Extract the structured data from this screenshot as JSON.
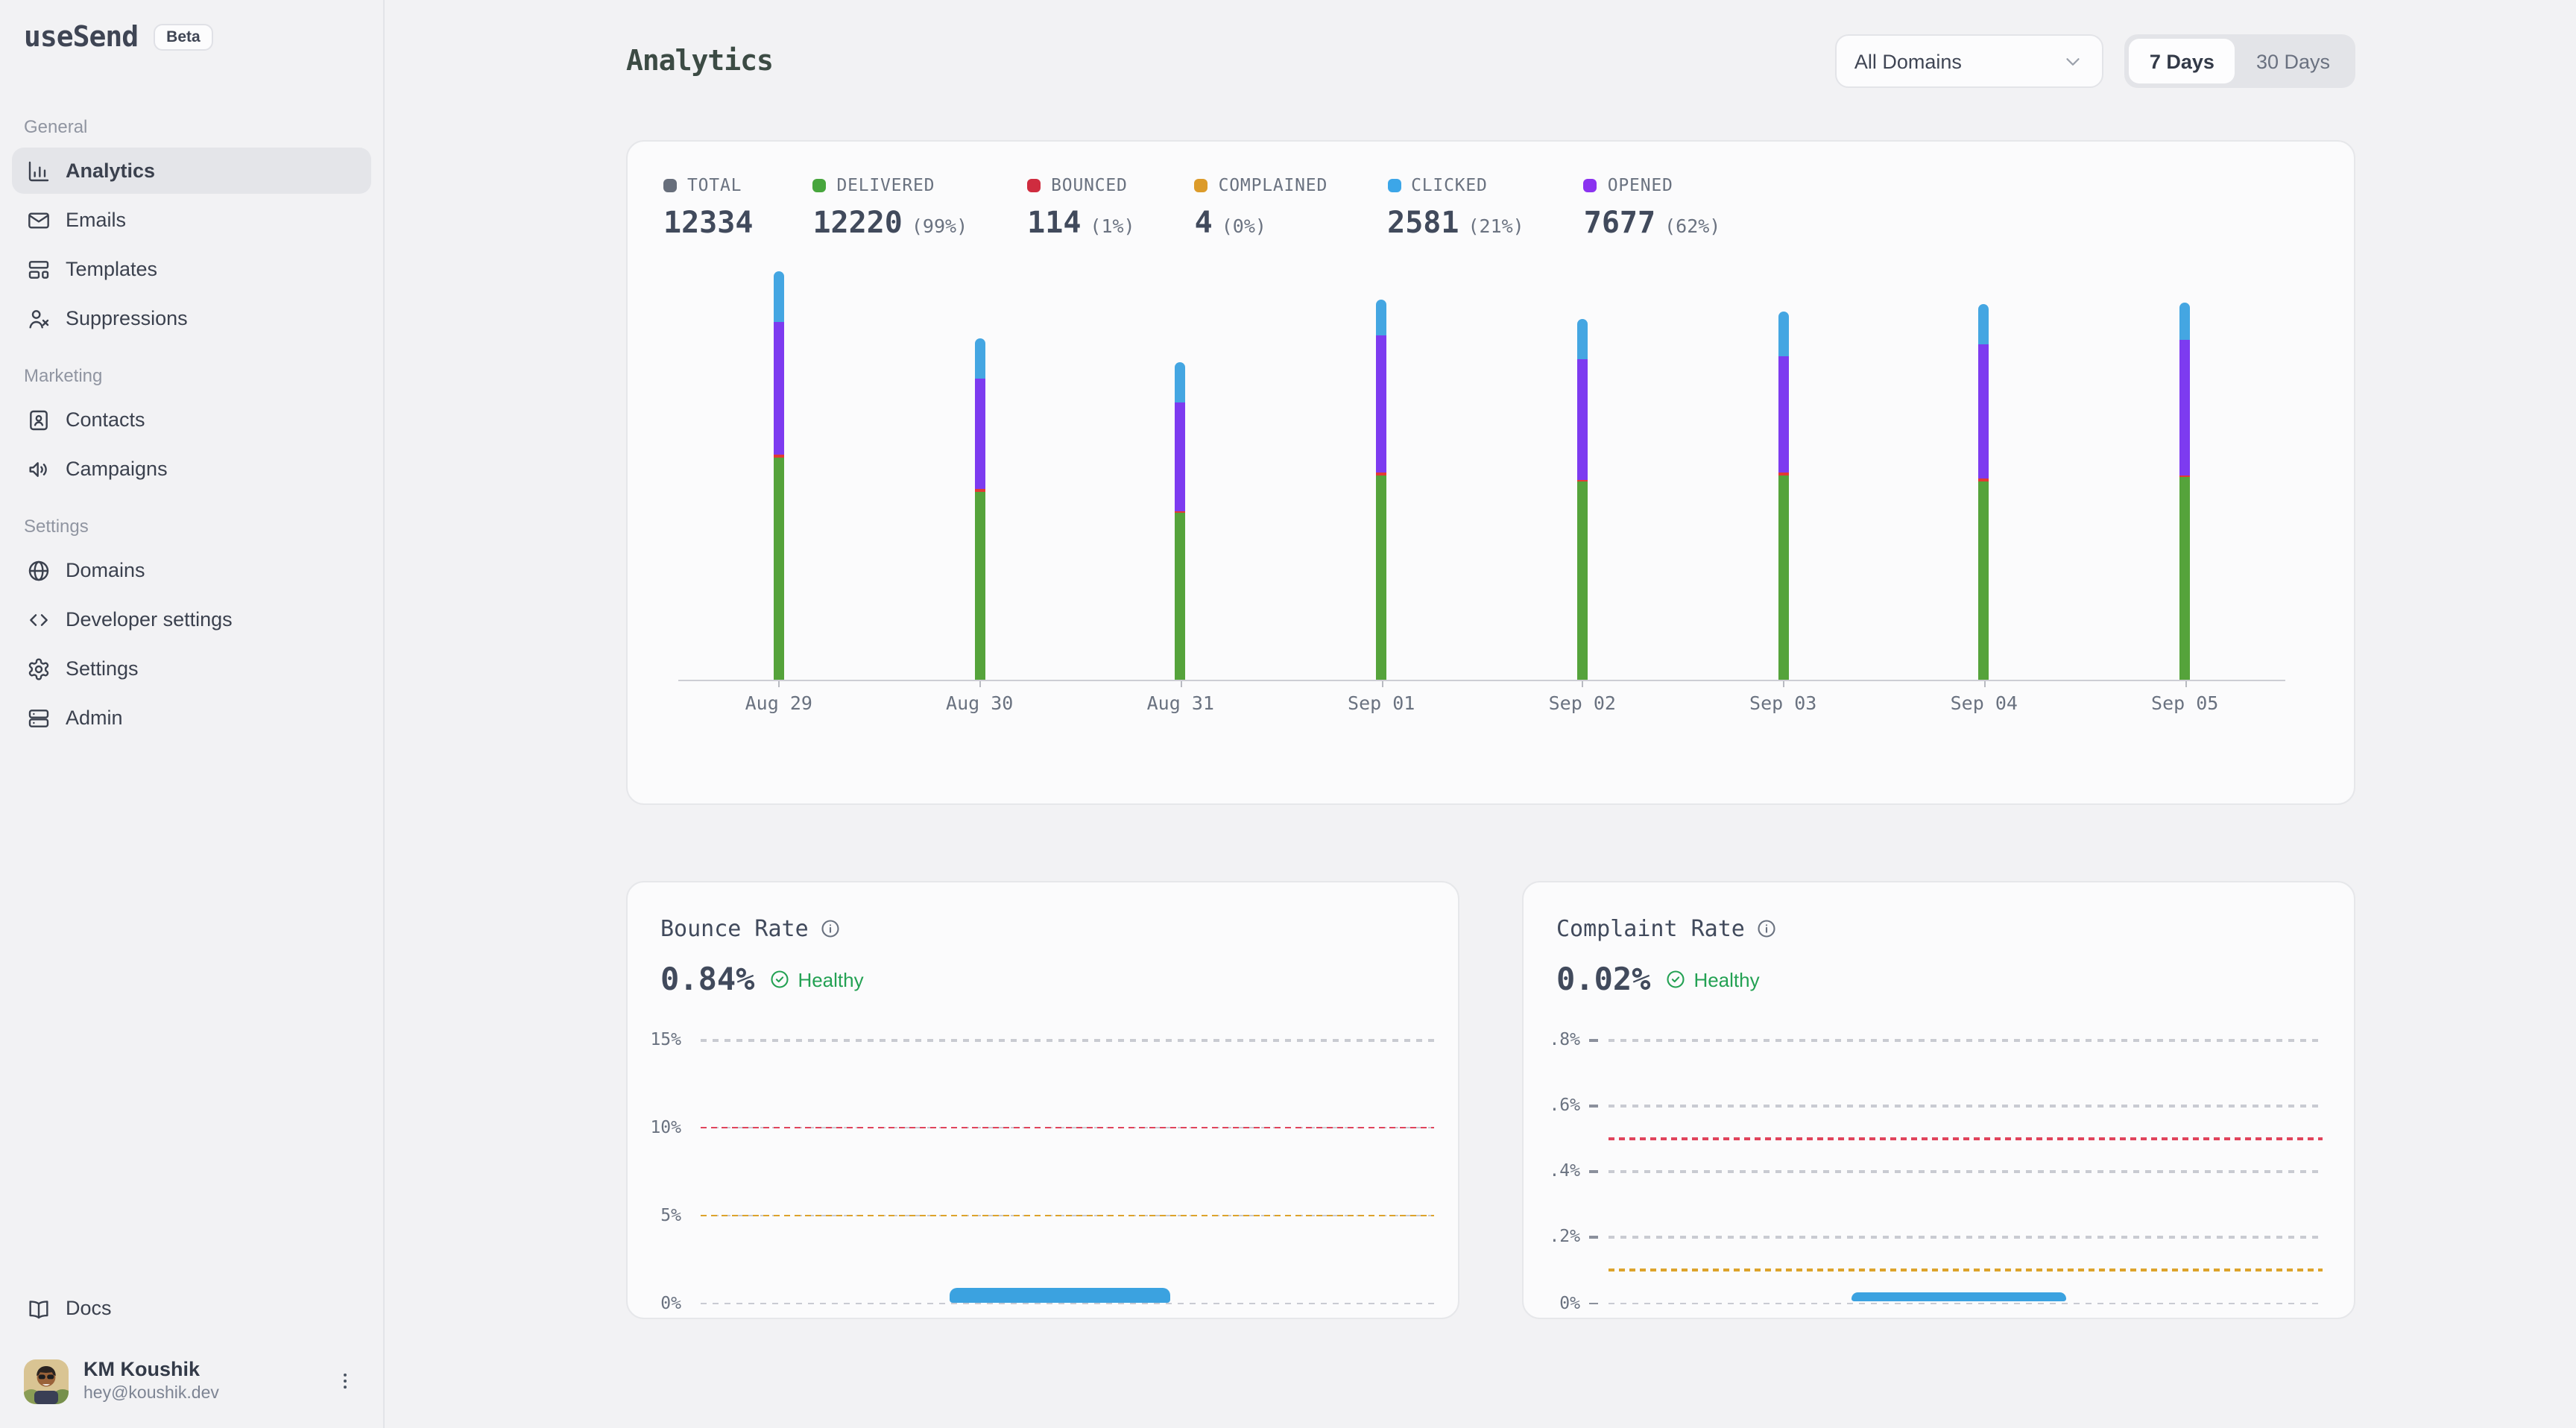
{
  "sidebar": {
    "logo": "useSend",
    "beta_badge": "Beta",
    "sections": [
      {
        "label": "General",
        "items": [
          {
            "label": "Analytics",
            "icon": "chart-column",
            "active": true
          },
          {
            "label": "Emails",
            "icon": "mail",
            "active": false
          },
          {
            "label": "Templates",
            "icon": "layout-template",
            "active": false
          },
          {
            "label": "Suppressions",
            "icon": "user-x",
            "active": false
          }
        ]
      },
      {
        "label": "Marketing",
        "items": [
          {
            "label": "Contacts",
            "icon": "contact-book",
            "active": false
          },
          {
            "label": "Campaigns",
            "icon": "megaphone",
            "active": false
          }
        ]
      },
      {
        "label": "Settings",
        "items": [
          {
            "label": "Domains",
            "icon": "globe",
            "active": false
          },
          {
            "label": "Developer settings",
            "icon": "code",
            "active": false
          },
          {
            "label": "Settings",
            "icon": "gear",
            "active": false
          },
          {
            "label": "Admin",
            "icon": "server",
            "active": false
          }
        ]
      }
    ],
    "docs_label": "Docs",
    "user": {
      "name": "KM Koushik",
      "email": "hey@koushik.dev"
    }
  },
  "header": {
    "title": "Analytics",
    "domain_filter": "All Domains",
    "range_options": [
      "7 Days",
      "30 Days"
    ],
    "selected_range": "7 Days"
  },
  "stats": [
    {
      "label": "TOTAL",
      "value": "12334",
      "pct": "",
      "color": "#676e7b"
    },
    {
      "label": "DELIVERED",
      "value": "12220",
      "pct": "(99%)",
      "color": "#47a63d"
    },
    {
      "label": "BOUNCED",
      "value": "114",
      "pct": "(1%)",
      "color": "#cf2c3f"
    },
    {
      "label": "COMPLAINED",
      "value": "4",
      "pct": "(0%)",
      "color": "#dc9b2a"
    },
    {
      "label": "CLICKED",
      "value": "2581",
      "pct": "(21%)",
      "color": "#3ca6e8"
    },
    {
      "label": "OPENED",
      "value": "7677",
      "pct": "(62%)",
      "color": "#8b33f0"
    }
  ],
  "chart_data": [
    {
      "type": "bar",
      "stacked": true,
      "title": "",
      "xlabel": "",
      "ylabel": "",
      "grid": false,
      "legend_position": "top",
      "categories": [
        "Aug 29",
        "Aug 30",
        "Aug 31",
        "Sep 01",
        "Sep 02",
        "Sep 03",
        "Sep 04",
        "Sep 05"
      ],
      "series": [
        {
          "name": "Delivered",
          "color": "#55a33b",
          "values": [
            1716,
            1453,
            1281,
            1579,
            1522,
            1579,
            1533,
            1557
          ]
        },
        {
          "name": "Bounced",
          "color": "#e23a33",
          "values": [
            15,
            14,
            14,
            14,
            14,
            14,
            14,
            15
          ]
        },
        {
          "name": "Opened",
          "color": "#7d3bf0",
          "values": [
            1026,
            848,
            843,
            1055,
            934,
            894,
            1032,
            1045
          ]
        },
        {
          "name": "Clicked",
          "color": "#44a6e2",
          "values": [
            389,
            320,
            309,
            286,
            314,
            349,
            320,
            294
          ]
        }
      ]
    },
    {
      "type": "area",
      "title": "Bounce Rate",
      "value": "0.84%",
      "status": "Healthy",
      "x": [
        "Aug 29",
        "Aug 30",
        "Aug 31",
        "Sep 01",
        "Sep 02",
        "Sep 03",
        "Sep 04",
        "Sep 05"
      ],
      "values": [
        0,
        0,
        0,
        0.85,
        0.85,
        0,
        0,
        0
      ],
      "y_ticks": [
        "15%",
        "10%",
        "5%",
        "0%"
      ],
      "y_max": 15,
      "thresholds": [
        {
          "value": 10,
          "color": "red"
        },
        {
          "value": 5,
          "color": "amber"
        }
      ],
      "series_color": "#3ba2e0",
      "bump_span": [
        0.34,
        0.64
      ],
      "tick_marks": false
    },
    {
      "type": "area",
      "title": "Complaint Rate",
      "value": "0.02%",
      "status": "Healthy",
      "x": [
        "Aug 29",
        "Aug 30",
        "Aug 31",
        "Sep 01",
        "Sep 02",
        "Sep 03",
        "Sep 04",
        "Sep 05"
      ],
      "values": [
        0,
        0,
        0,
        0.03,
        0.03,
        0,
        0,
        0
      ],
      "y_ticks": [
        ".8%",
        ".6%",
        ".4%",
        ".2%",
        "0%"
      ],
      "y_max": 0.8,
      "thresholds": [
        {
          "value": 0.5,
          "color": "red"
        },
        {
          "value": 0.1,
          "color": "amber"
        }
      ],
      "series_color": "#3ba2e0",
      "bump_span": [
        0.34,
        0.64
      ],
      "tick_marks": true
    }
  ]
}
